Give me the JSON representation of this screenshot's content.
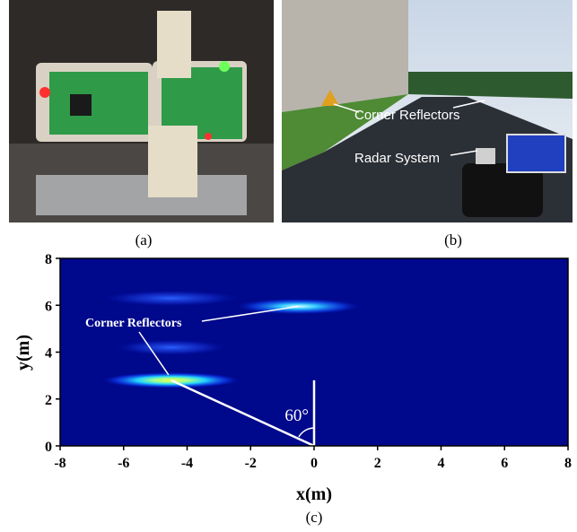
{
  "panel_a": {
    "caption": "(a)"
  },
  "panel_b": {
    "caption": "(b)",
    "labels": [
      "Corner Reflectors",
      "Radar System"
    ]
  },
  "chart_data": {
    "type": "heatmap",
    "caption": "(c)",
    "xlabel": "x(m)",
    "ylabel": "y(m)",
    "xlim": [
      -8,
      8
    ],
    "ylim": [
      0,
      8
    ],
    "xticks": [
      -8,
      -6,
      -4,
      -2,
      0,
      2,
      4,
      6,
      8
    ],
    "yticks": [
      0,
      2,
      4,
      6,
      8
    ],
    "annotation": "Corner Reflectors",
    "angle_label": "60°",
    "hotspots": [
      {
        "x": -4.5,
        "y": 2.8,
        "width": 4.4,
        "intensity": 1
      },
      {
        "x": -0.5,
        "y": 5.95,
        "width": 4,
        "intensity": 0.7
      },
      {
        "x": -4.5,
        "y": 4.2,
        "width": 3.6,
        "intensity": 0.35
      },
      {
        "x": -4.5,
        "y": 6.3,
        "width": 4.4,
        "intensity": 0.2
      }
    ]
  }
}
